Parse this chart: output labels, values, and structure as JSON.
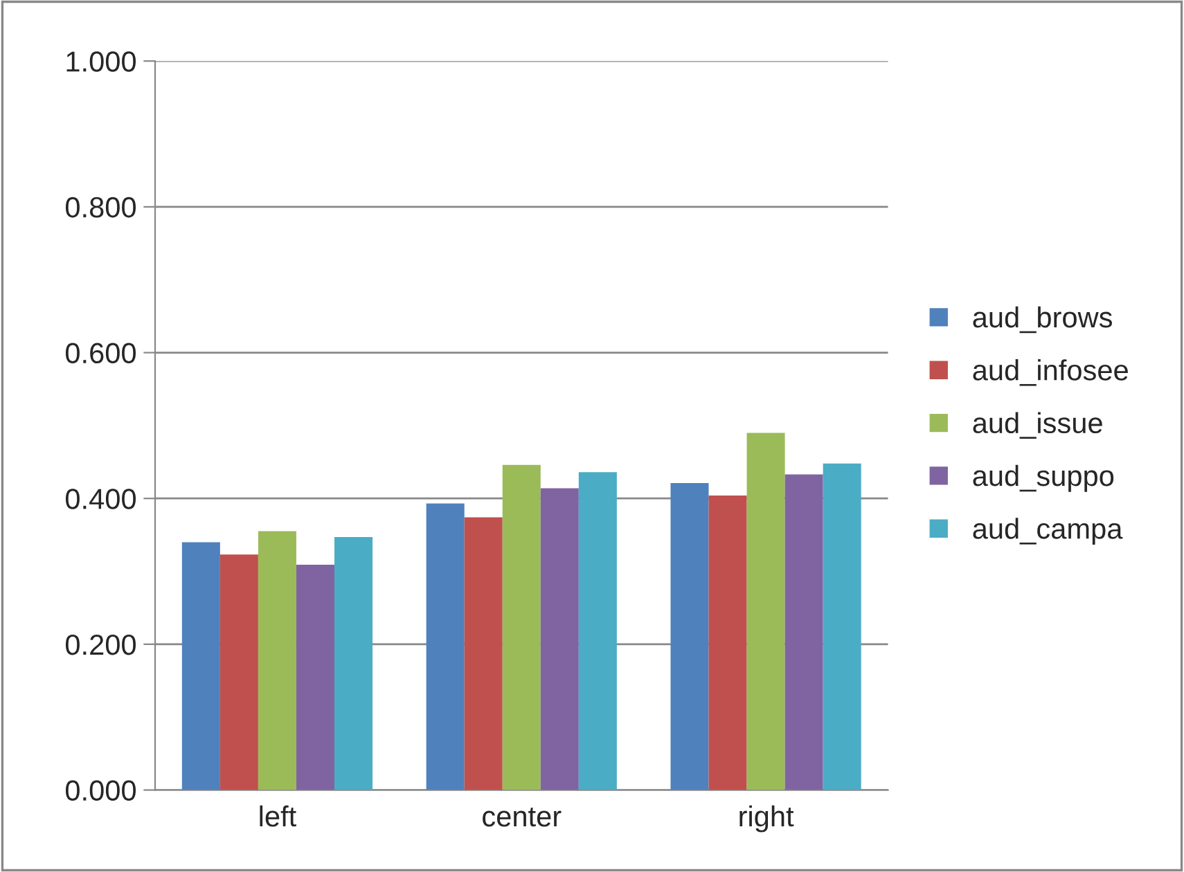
{
  "chart_data": {
    "type": "bar",
    "categories": [
      "left",
      "center",
      "right"
    ],
    "series": [
      {
        "name": "aud_brows",
        "color": "#4f81bd",
        "values": [
          0.34,
          0.393,
          0.421
        ]
      },
      {
        "name": "aud_infosee",
        "color": "#c0504d",
        "values": [
          0.323,
          0.374,
          0.404
        ]
      },
      {
        "name": "aud_issue",
        "color": "#9bbb59",
        "values": [
          0.355,
          0.446,
          0.49
        ]
      },
      {
        "name": "aud_suppo",
        "color": "#8064a2",
        "values": [
          0.309,
          0.414,
          0.433
        ]
      },
      {
        "name": "aud_campa",
        "color": "#4bacc6",
        "values": [
          0.347,
          0.436,
          0.448
        ]
      }
    ],
    "ylim": [
      0,
      1
    ],
    "yticks": [
      {
        "value": 0,
        "label": "0.000"
      },
      {
        "value": 0.2,
        "label": "0.200"
      },
      {
        "value": 0.4,
        "label": "0.400"
      },
      {
        "value": 0.6,
        "label": "0.600"
      },
      {
        "value": 0.8,
        "label": "0.800"
      },
      {
        "value": 1,
        "label": "1.000"
      }
    ],
    "grid": "y",
    "legend": "right"
  }
}
